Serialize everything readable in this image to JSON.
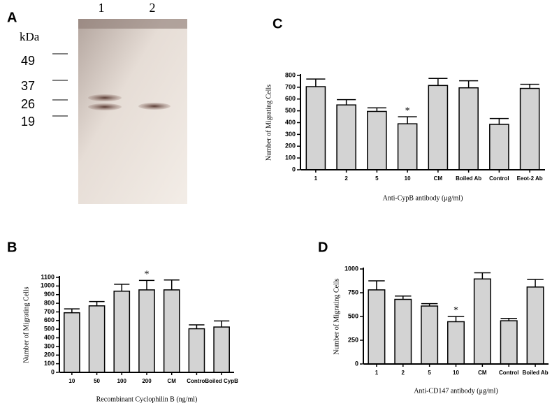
{
  "gel": {
    "panel": "A",
    "unit": "kDa",
    "markers": [
      "49",
      "37",
      "26",
      "19"
    ],
    "lanes": [
      "1",
      "2"
    ]
  },
  "chart_data": [
    {
      "type": "bar",
      "panel": "C",
      "ylabel": "Number of Migrating Cells",
      "xlabel": "Anti-CypB antibody (μg/ml)",
      "categories": [
        "1",
        "2",
        "5",
        "10",
        "CM",
        "Boiled Ab",
        "Control",
        "Eeot-2 Ab"
      ],
      "values": [
        705,
        550,
        495,
        390,
        715,
        695,
        385,
        690
      ],
      "errors": [
        65,
        45,
        30,
        60,
        60,
        60,
        50,
        35
      ],
      "color": "#d3d3d3",
      "ylim": [
        0,
        800
      ],
      "yticks": [
        0,
        100,
        200,
        300,
        400,
        500,
        600,
        700,
        800
      ],
      "annotations": [
        {
          "text": "*",
          "x": "10"
        }
      ]
    },
    {
      "type": "bar",
      "panel": "B",
      "ylabel": "Number of Migrating Cells",
      "xlabel": "Recombinant Cyclophilin B (ng/ml)",
      "categories": [
        "10",
        "50",
        "100",
        "200",
        "CM",
        "Control",
        "Boiled CypB"
      ],
      "values": [
        690,
        770,
        940,
        955,
        955,
        505,
        525
      ],
      "errors": [
        45,
        50,
        80,
        110,
        115,
        45,
        70
      ],
      "color": "#d3d3d3",
      "ylim": [
        0,
        1100
      ],
      "yticks": [
        0,
        100,
        200,
        300,
        400,
        500,
        600,
        700,
        800,
        900,
        1000,
        1100
      ],
      "annotations": [
        {
          "text": "*",
          "x": "200"
        }
      ]
    },
    {
      "type": "bar",
      "panel": "D",
      "ylabel": "Number of Migrating Cells",
      "xlabel": "Anti-CD147 antibody (μg/ml)",
      "categories": [
        "1",
        "2",
        "5",
        "10",
        "CM",
        "Control",
        "Boiled Ab"
      ],
      "values": [
        780,
        680,
        610,
        445,
        895,
        455,
        810
      ],
      "errors": [
        95,
        35,
        25,
        55,
        65,
        25,
        80
      ],
      "color": "#d3d3d3",
      "ylim": [
        0,
        1000
      ],
      "yticks": [
        0,
        250,
        500,
        750,
        1000
      ],
      "annotations": [
        {
          "text": "*",
          "x": "10"
        }
      ]
    }
  ]
}
